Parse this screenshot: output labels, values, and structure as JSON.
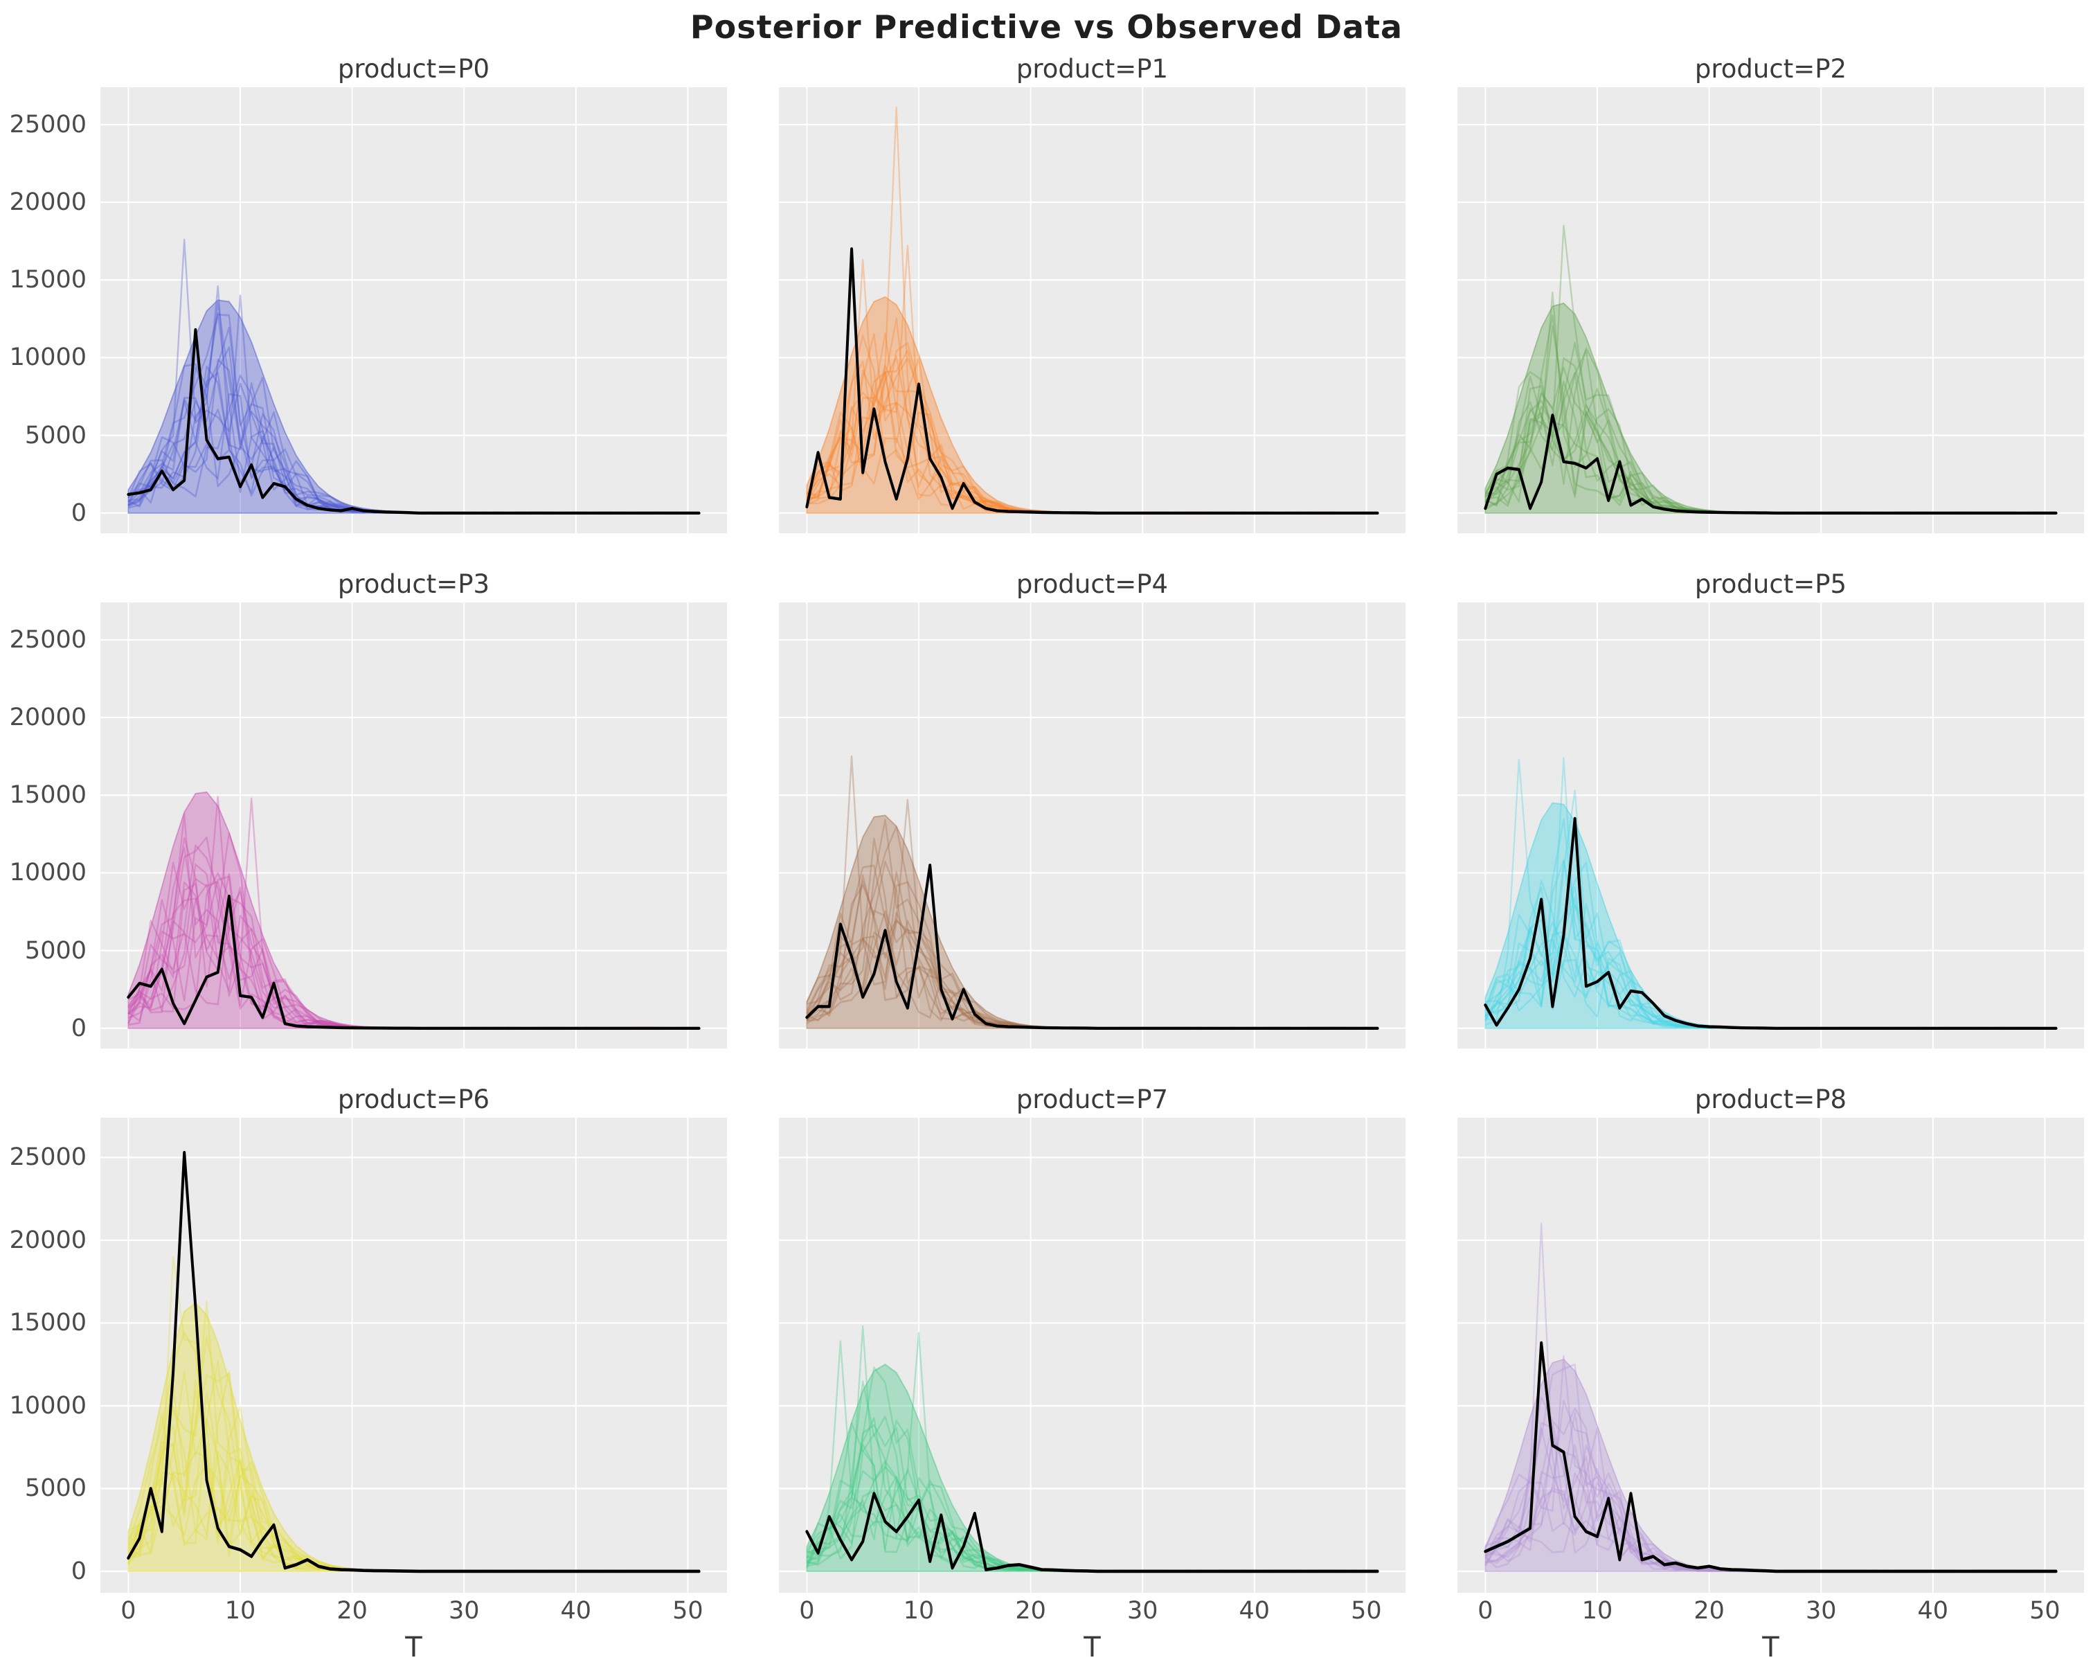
{
  "title": "Posterior Predictive vs Observed Data",
  "chart_data": {
    "type": "line",
    "layout": "3x3 facet grid, shared axes",
    "title": "Posterior Predictive vs Observed Data",
    "axis": {
      "xlabel": "T",
      "ylabel": "",
      "x_ticks": [
        0,
        10,
        20,
        30,
        40,
        50
      ],
      "x_tick_labels": [
        "0",
        "10",
        "20",
        "30",
        "40",
        "50"
      ],
      "y_ticks": [
        0,
        5000,
        10000,
        15000,
        20000,
        25000
      ],
      "y_tick_labels": [
        "0",
        "5000",
        "10000",
        "15000",
        "20000",
        "25000"
      ],
      "xlim": [
        -2.5,
        53.5
      ],
      "ylim": [
        -1300,
        27400
      ],
      "x_start": 0,
      "x_end": 51,
      "x_step": 1,
      "grid": true,
      "grid_color": "#ffffff",
      "panel_background": "#ebebeb",
      "tick_label_color": "#4a4a4a"
    },
    "style": {
      "observed_color": "#000000",
      "observed_width": 4.4,
      "sample_alpha": 0.35,
      "band_fill_alpha": 0.38,
      "band_edge_alpha": 0.5,
      "n_sample_paths": 15
    },
    "facets": [
      {
        "product": "P0",
        "title": "product=P0",
        "color": "#4a57d2",
        "seed": 11,
        "observed": [
          1200,
          1300,
          1500,
          2700,
          1500,
          2100,
          11800,
          4700,
          3500,
          3600,
          1700,
          3100,
          1000,
          1900,
          1700,
          900,
          500,
          300,
          200,
          150,
          300,
          150,
          100,
          70,
          50,
          30
        ],
        "band_upper": [
          1500,
          2600,
          3900,
          5600,
          7600,
          9500,
          11400,
          13000,
          13700,
          13600,
          12600,
          11000,
          9000,
          7000,
          5200,
          3700,
          2600,
          1700,
          1100,
          700,
          450,
          300,
          200,
          130,
          80
        ],
        "tail_value": 0,
        "sample_peaks": [
          {
            "t": 5,
            "v": 17600
          },
          {
            "t": 8,
            "v": 14600
          },
          {
            "t": 10,
            "v": 14000
          }
        ]
      },
      {
        "product": "P1",
        "title": "product=P1",
        "color": "#f8842c",
        "seed": 22,
        "observed": [
          400,
          3900,
          1000,
          900,
          17000,
          2600,
          6700,
          3300,
          900,
          3500,
          8300,
          3500,
          2300,
          300,
          1900,
          700,
          300,
          150,
          100,
          80,
          60,
          40,
          30,
          20,
          15,
          10
        ],
        "band_upper": [
          1800,
          3400,
          5400,
          7800,
          10200,
          12300,
          13600,
          13900,
          13400,
          12100,
          10200,
          8100,
          6100,
          4400,
          3000,
          2000,
          1300,
          800,
          500,
          320,
          200,
          130,
          80,
          50,
          30
        ],
        "tail_value": 0,
        "sample_peaks": [
          {
            "t": 8,
            "v": 26100
          },
          {
            "t": 9,
            "v": 17200
          },
          {
            "t": 5,
            "v": 16300
          }
        ]
      },
      {
        "product": "P2",
        "title": "product=P2",
        "color": "#61a351",
        "seed": 33,
        "observed": [
          300,
          2500,
          2900,
          2800,
          300,
          2000,
          6300,
          3300,
          3200,
          2900,
          3500,
          800,
          3300,
          500,
          900,
          400,
          250,
          150,
          100,
          70,
          50,
          40,
          30,
          20,
          15,
          10
        ],
        "band_upper": [
          1600,
          3100,
          5000,
          7300,
          9700,
          11900,
          13300,
          13500,
          12800,
          11300,
          9300,
          7300,
          5400,
          3800,
          2600,
          1700,
          1100,
          700,
          430,
          270,
          170,
          100,
          60,
          40,
          25
        ],
        "tail_value": 0,
        "sample_peaks": [
          {
            "t": 7,
            "v": 18500
          },
          {
            "t": 6,
            "v": 14200
          }
        ]
      },
      {
        "product": "P3",
        "title": "product=P3",
        "color": "#c94bb0",
        "seed": 44,
        "observed": [
          2000,
          2900,
          2700,
          3800,
          1600,
          300,
          1800,
          3300,
          3600,
          8500,
          2100,
          2000,
          700,
          2900,
          300,
          150,
          100,
          80,
          60,
          40,
          30,
          20,
          15,
          10,
          8,
          5
        ],
        "band_upper": [
          2200,
          4100,
          6500,
          9100,
          11700,
          13900,
          15100,
          15200,
          14300,
          12600,
          10400,
          8100,
          6000,
          4200,
          2900,
          1900,
          1200,
          750,
          470,
          290,
          180,
          110,
          70,
          40,
          25
        ],
        "tail_value": 0,
        "sample_peaks": [
          {
            "t": 8,
            "v": 14900
          },
          {
            "t": 11,
            "v": 14800
          },
          {
            "t": 5,
            "v": 13800
          }
        ]
      },
      {
        "product": "P4",
        "title": "product=P4",
        "color": "#a2714e",
        "seed": 55,
        "observed": [
          700,
          1400,
          1400,
          6700,
          4600,
          2000,
          3500,
          6300,
          3000,
          1300,
          5500,
          10500,
          2500,
          600,
          2500,
          900,
          300,
          150,
          100,
          80,
          60,
          40,
          30,
          20,
          15,
          10
        ],
        "band_upper": [
          1700,
          3300,
          5300,
          7700,
          10100,
          12300,
          13600,
          13700,
          13000,
          11500,
          9500,
          7400,
          5500,
          3900,
          2650,
          1750,
          1120,
          700,
          440,
          270,
          170,
          100,
          60,
          40,
          25
        ],
        "tail_value": 0,
        "sample_peaks": [
          {
            "t": 4,
            "v": 17500
          },
          {
            "t": 9,
            "v": 14700
          }
        ]
      },
      {
        "product": "P5",
        "title": "product=P5",
        "color": "#45d4e6",
        "seed": 66,
        "observed": [
          1500,
          200,
          1300,
          2500,
          4500,
          8300,
          1400,
          6000,
          13500,
          2700,
          3000,
          3600,
          1300,
          2400,
          2300,
          1600,
          800,
          500,
          300,
          150,
          100,
          80,
          50,
          30,
          20,
          10
        ],
        "band_upper": [
          2000,
          3800,
          6100,
          8700,
          11300,
          13400,
          14500,
          14400,
          13300,
          11500,
          9300,
          7200,
          5300,
          3700,
          2500,
          1650,
          1050,
          660,
          410,
          250,
          155,
          95,
          60,
          35,
          22
        ],
        "tail_value": 0,
        "sample_peaks": [
          {
            "t": 3,
            "v": 17300
          },
          {
            "t": 7,
            "v": 17400
          },
          {
            "t": 8,
            "v": 15300
          }
        ]
      },
      {
        "product": "P6",
        "title": "product=P6",
        "color": "#e2dc3a",
        "seed": 77,
        "observed": [
          800,
          2000,
          5000,
          2400,
          12000,
          25300,
          16000,
          5500,
          2600,
          1500,
          1300,
          900,
          1900,
          2800,
          200,
          400,
          700,
          300,
          150,
          100,
          80,
          50,
          40,
          30,
          20,
          10
        ],
        "band_upper": [
          2400,
          4600,
          7400,
          10500,
          13400,
          15700,
          16200,
          15500,
          13800,
          11500,
          9100,
          6900,
          5000,
          3500,
          2400,
          1550,
          1000,
          620,
          380,
          235,
          145,
          90,
          55,
          33,
          20
        ],
        "tail_value": 0,
        "sample_peaks": [
          {
            "t": 4,
            "v": 19000
          },
          {
            "t": 7,
            "v": 16300
          }
        ]
      },
      {
        "product": "P7",
        "title": "product=P7",
        "color": "#41c983",
        "seed": 88,
        "observed": [
          2400,
          1100,
          3300,
          1900,
          700,
          1800,
          4700,
          3000,
          2400,
          3300,
          4300,
          600,
          3400,
          200,
          1500,
          3500,
          100,
          200,
          350,
          400,
          250,
          100,
          80,
          50,
          30,
          20
        ],
        "band_upper": [
          1500,
          2900,
          4700,
          6800,
          9000,
          10900,
          12100,
          12500,
          12000,
          10800,
          9100,
          7300,
          5500,
          4000,
          2800,
          1850,
          1200,
          760,
          470,
          290,
          180,
          110,
          65,
          40,
          25
        ],
        "tail_value": 0,
        "sample_peaks": [
          {
            "t": 5,
            "v": 14800
          },
          {
            "t": 3,
            "v": 13900
          },
          {
            "t": 10,
            "v": 14400
          }
        ]
      },
      {
        "product": "P8",
        "title": "product=P8",
        "color": "#b292d4",
        "seed": 99,
        "observed": [
          1200,
          1500,
          1800,
          2200,
          2600,
          13800,
          7600,
          7200,
          3300,
          2400,
          2100,
          4400,
          700,
          4700,
          700,
          900,
          400,
          500,
          300,
          200,
          300,
          150,
          100,
          80,
          50,
          30
        ],
        "band_upper": [
          1500,
          2900,
          4800,
          7000,
          9300,
          11300,
          12600,
          12800,
          12100,
          10700,
          8800,
          6900,
          5100,
          3600,
          2500,
          1650,
          1050,
          660,
          410,
          250,
          155,
          95,
          58,
          35,
          22
        ],
        "tail_value": 0,
        "sample_peaks": [
          {
            "t": 5,
            "v": 21000
          },
          {
            "t": 7,
            "v": 13000
          }
        ]
      }
    ]
  }
}
